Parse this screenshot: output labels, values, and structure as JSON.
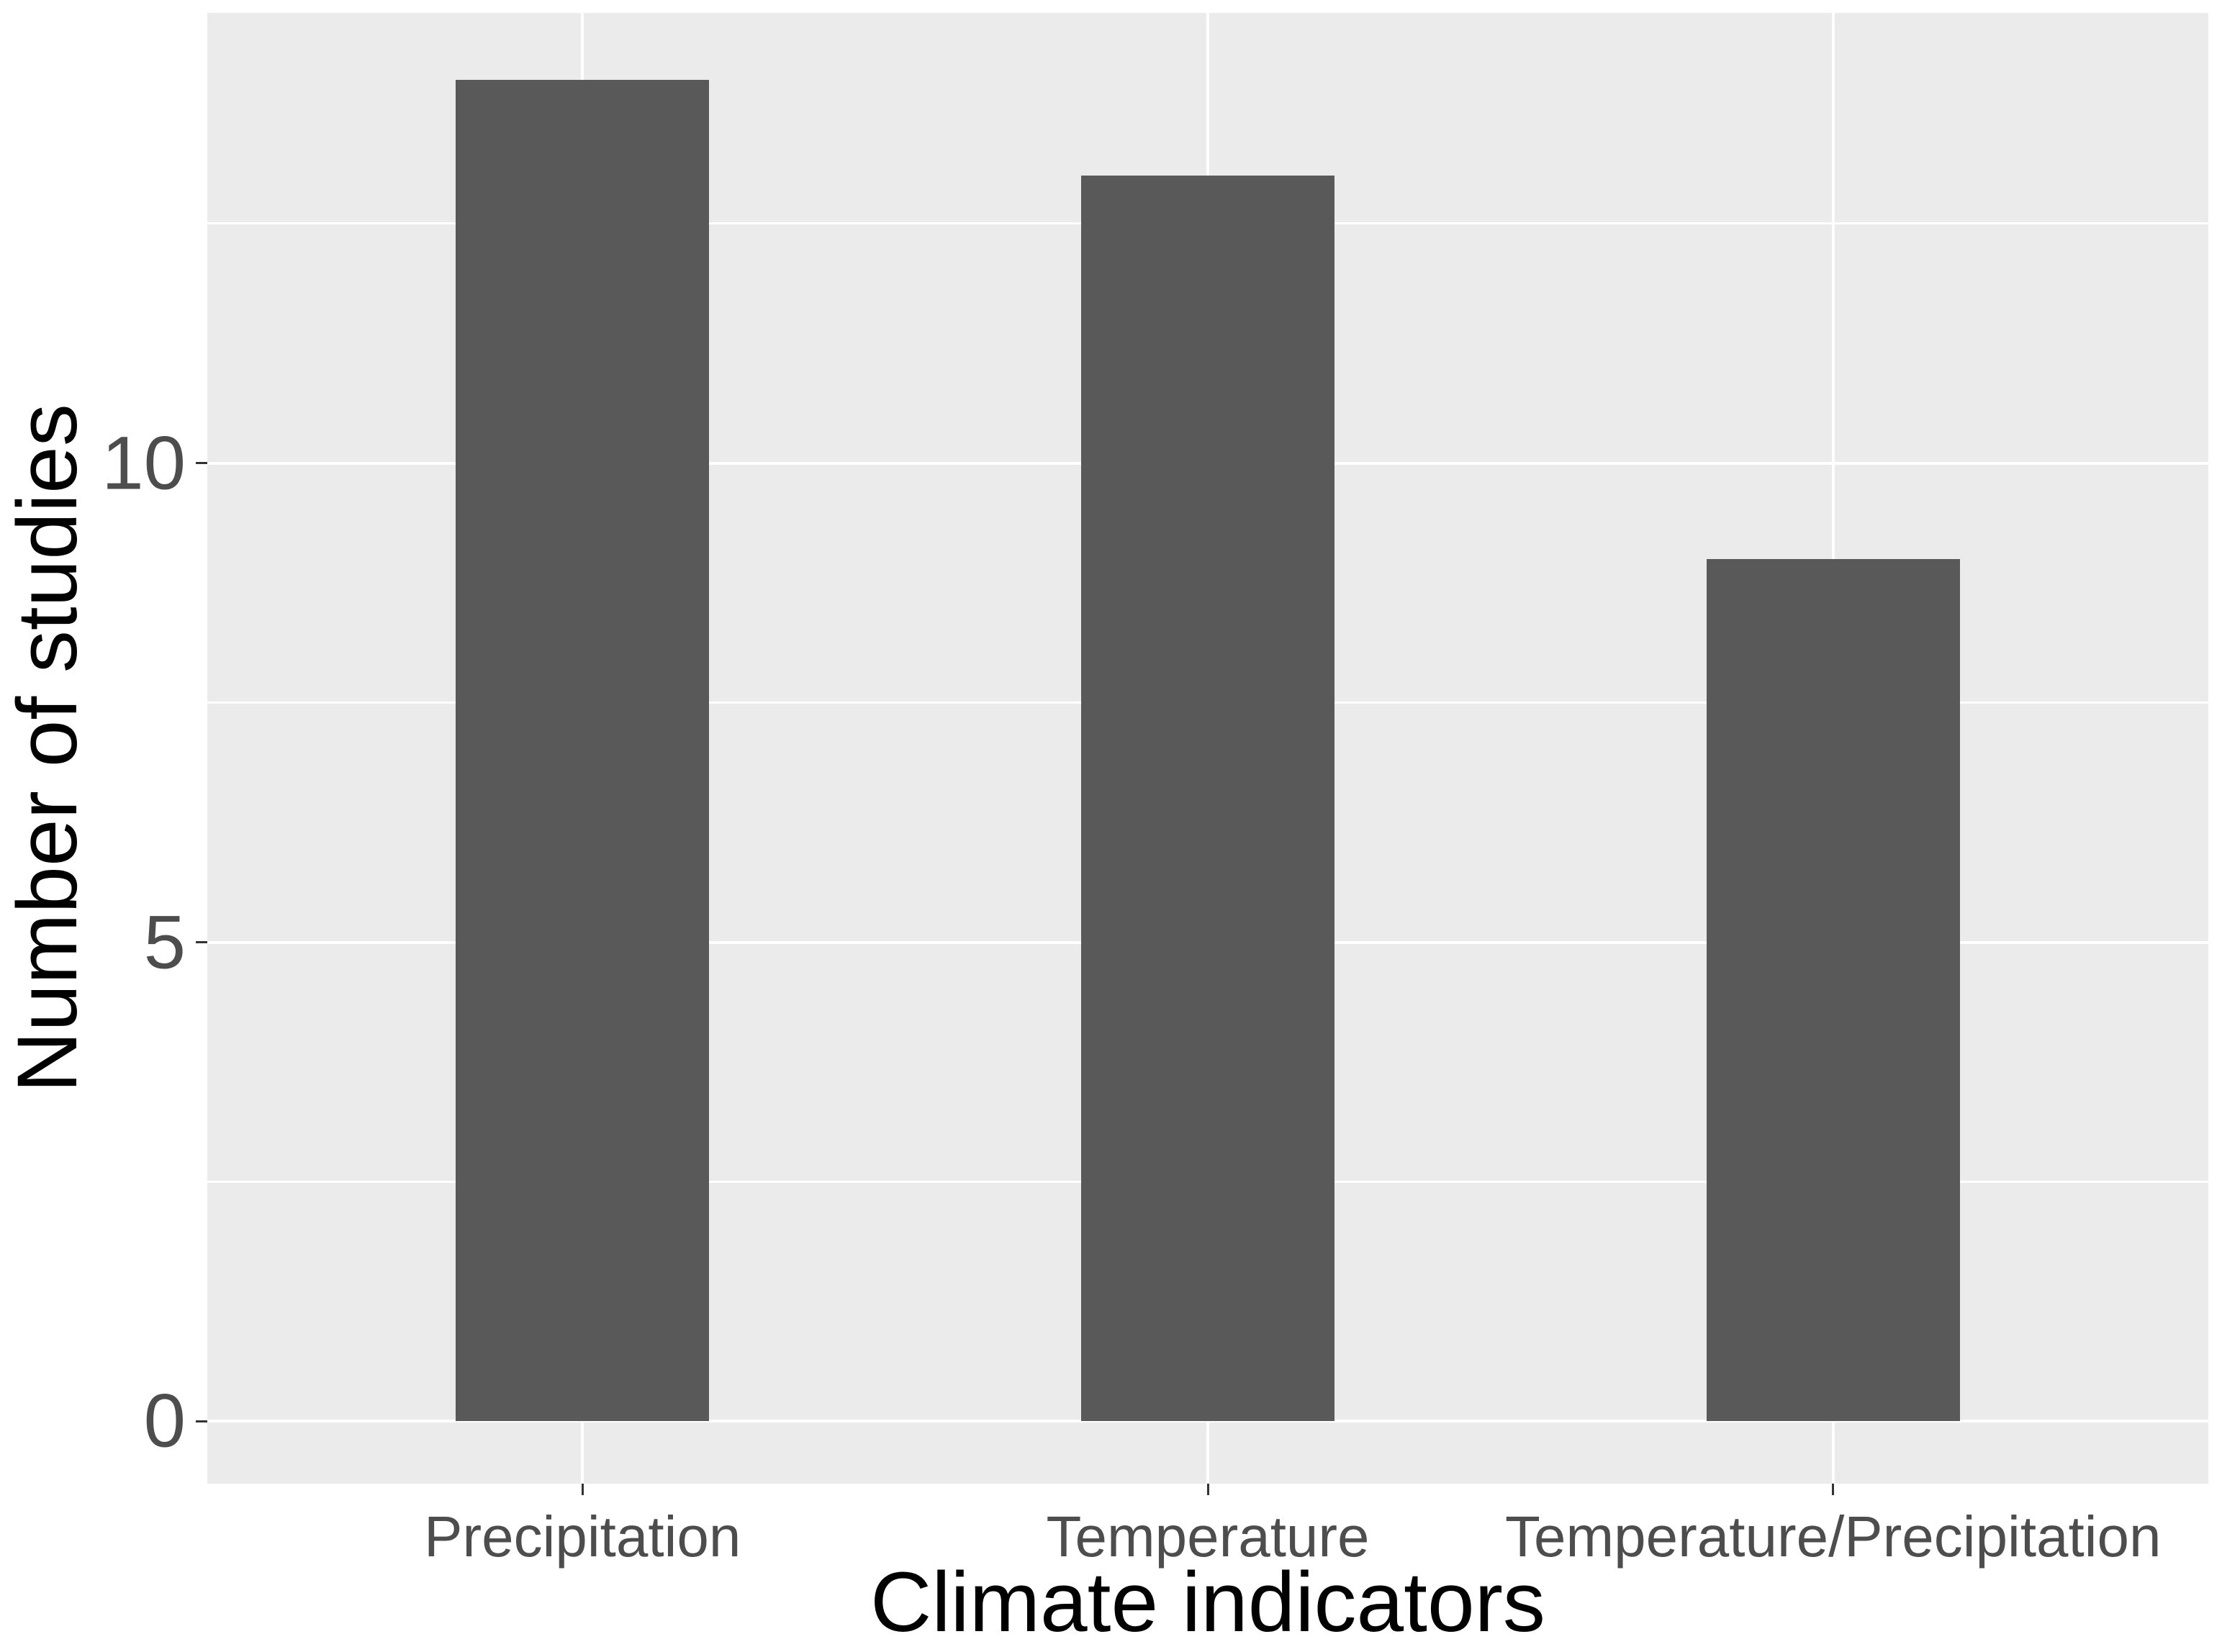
{
  "chart_data": {
    "type": "bar",
    "title": "",
    "categories": [
      "Precipitation",
      "Temperature",
      "Temperature/Precipitation"
    ],
    "values": [
      14,
      13,
      9
    ],
    "xlabel": "Climate indicators",
    "ylabel": "Number of studies",
    "y_major_ticks": [
      0,
      5,
      10
    ],
    "y_minor_gridlines": [
      2.5,
      7.5,
      12.5
    ],
    "ylim": [
      -0.65,
      14.7
    ],
    "grid": "on",
    "legend": "none",
    "colors": {
      "bar_fill": "#595959",
      "panel_background": "#EBEBEB",
      "gridline": "#FFFFFF",
      "tick_mark": "#333333",
      "tick_label": "#4D4D4D",
      "axis_title": "#000000",
      "figure_background": "#FFFFFF"
    }
  }
}
